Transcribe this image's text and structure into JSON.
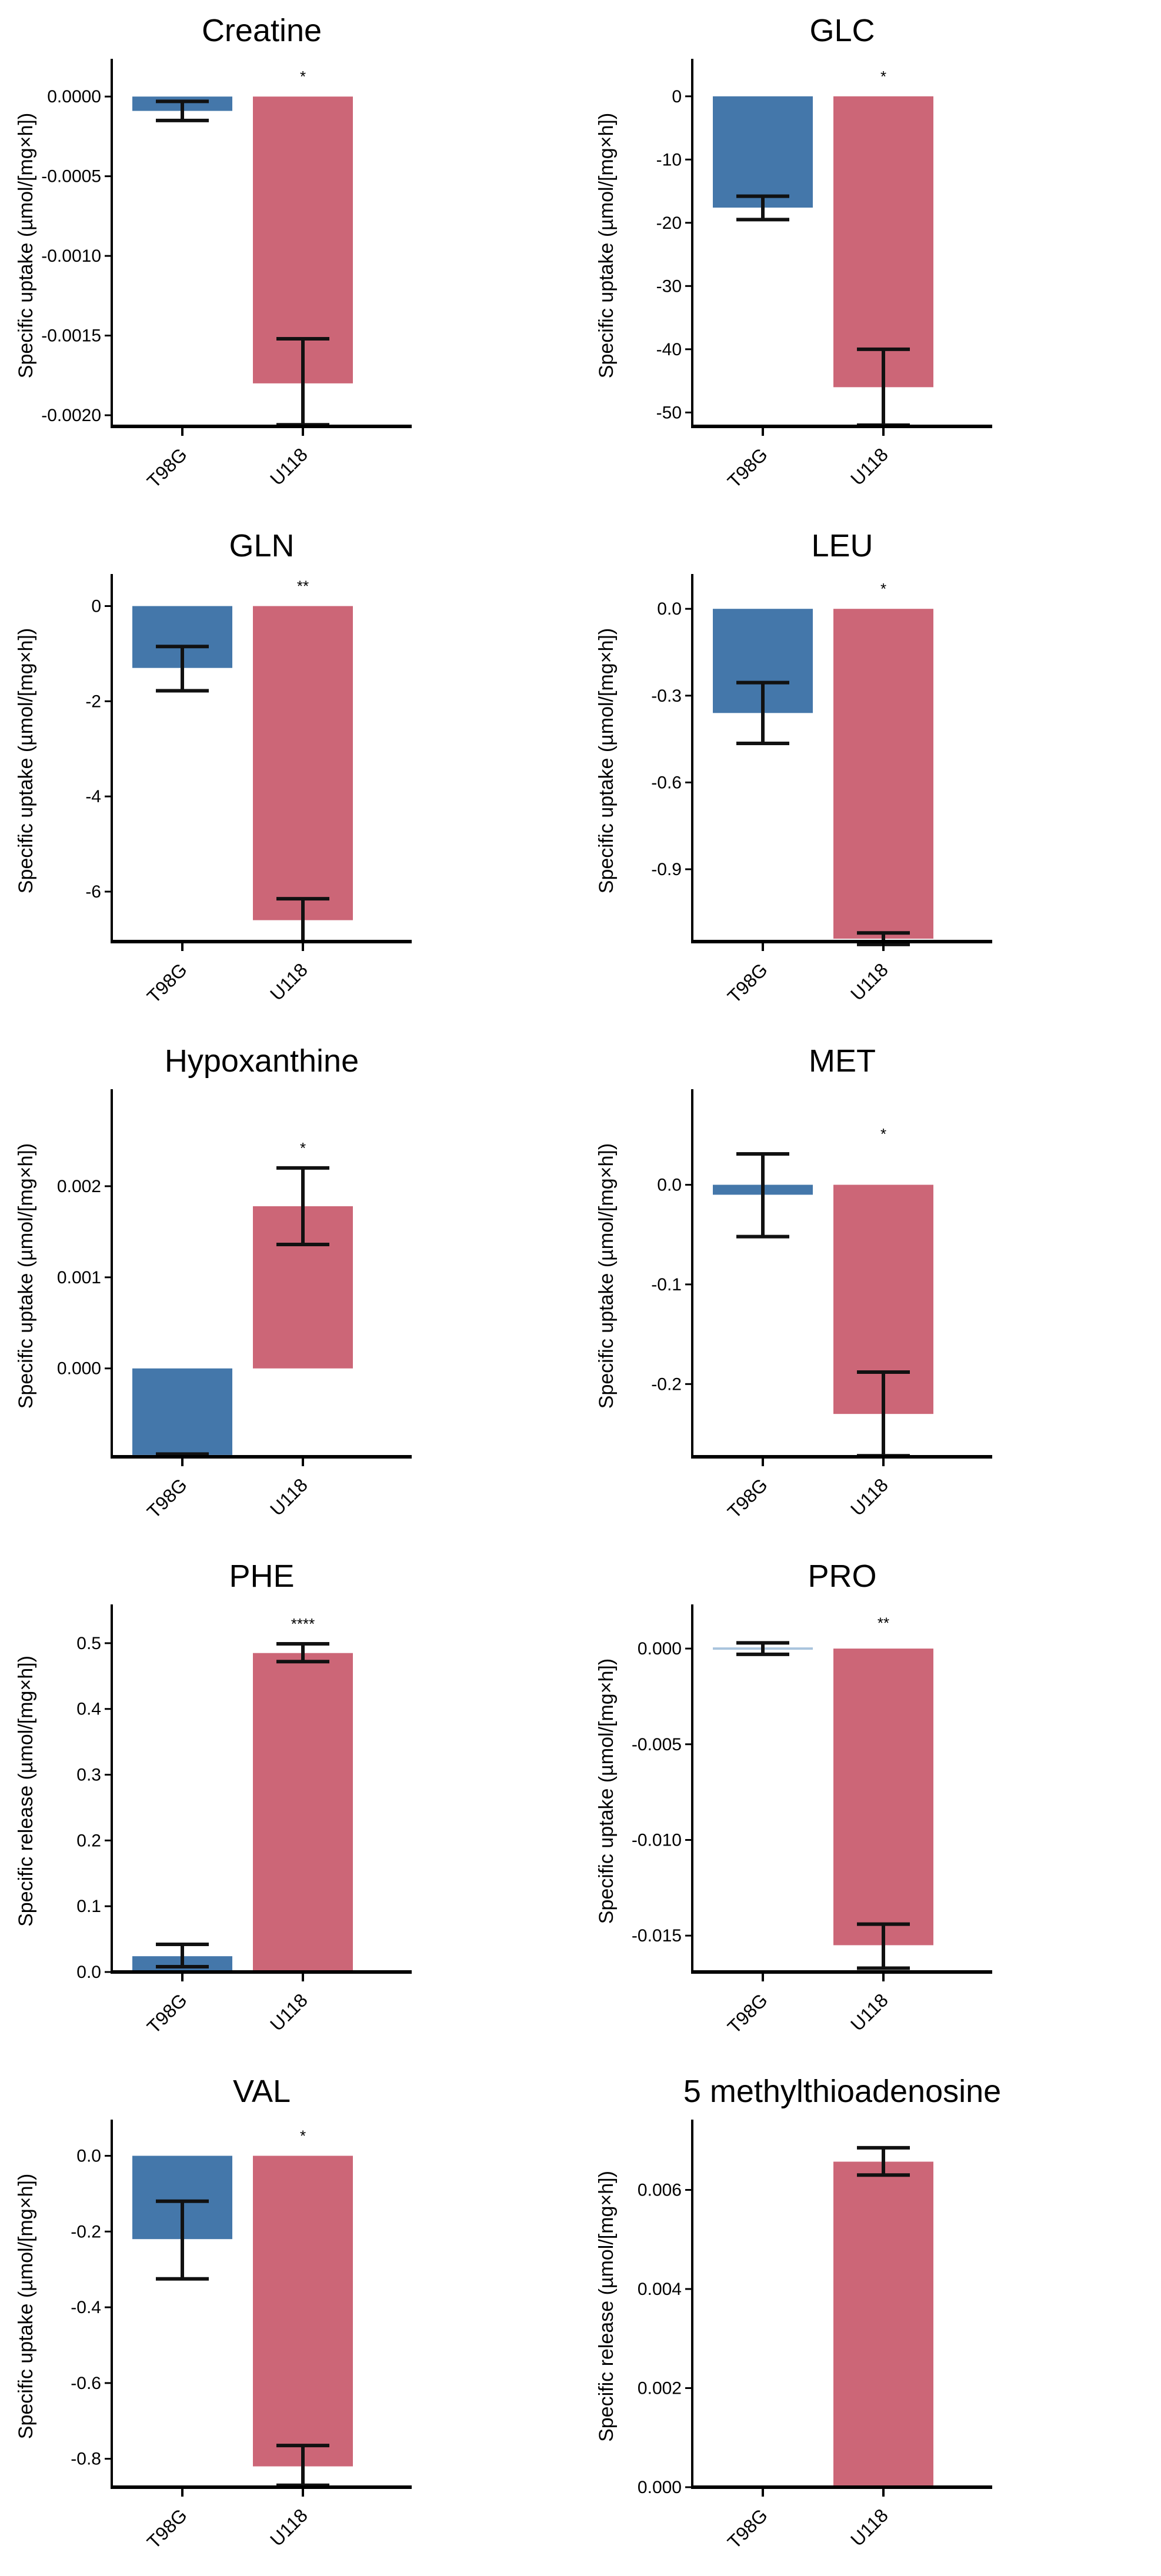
{
  "colors": {
    "T98G": "#4477aa",
    "U118": "#cc6677",
    "T98G_light": "#a9c4dd",
    "error": "#111111"
  },
  "chart_data": [
    {
      "type": "bar",
      "title": "Creatine",
      "ylabel": "Specific uptake (µmol/[mg×h])",
      "categories": [
        "T98G",
        "U118"
      ],
      "values": [
        -9e-05,
        -0.0018
      ],
      "err_low": [
        -0.00015,
        -0.00206
      ],
      "err_high": [
        -3e-05,
        -0.00152
      ],
      "significance": "*",
      "ylim": [
        -0.00207,
        0.0002
      ],
      "yticks": [
        0,
        -0.0005,
        -0.001,
        -0.0015,
        -0.002
      ],
      "ytick_labels": [
        "0.0000",
        "-0.0005",
        "-0.0010",
        "-0.0015",
        "-0.0020"
      ]
    },
    {
      "type": "bar",
      "title": "GLC",
      "ylabel": "Specific uptake (µmol/[mg×h])",
      "categories": [
        "T98G",
        "U118"
      ],
      "values": [
        -17.6,
        -46
      ],
      "err_low": [
        -19.5,
        -52
      ],
      "err_high": [
        -15.8,
        -40
      ],
      "significance": "*",
      "ylim": [
        -52.2,
        5
      ],
      "yticks": [
        0,
        -10,
        -20,
        -30,
        -40,
        -50
      ],
      "ytick_labels": [
        "0",
        "-10",
        "-20",
        "-30",
        "-40",
        "-50"
      ]
    },
    {
      "type": "bar",
      "title": "GLN",
      "ylabel": "Specific uptake (µmol/[mg×h])",
      "categories": [
        "T98G",
        "U118"
      ],
      "values": [
        -1.3,
        -6.6
      ],
      "err_low": [
        -1.78,
        -7.05
      ],
      "err_high": [
        -0.85,
        -6.15
      ],
      "significance": "**",
      "ylim": [
        -7.05,
        0.55
      ],
      "yticks": [
        0,
        -2,
        -4,
        -6
      ],
      "ytick_labels": [
        "0",
        "-2",
        "-4",
        "-6"
      ]
    },
    {
      "type": "bar",
      "title": "LEU",
      "ylabel": "Specific uptake (µmol/[mg×h])",
      "categories": [
        "T98G",
        "U118"
      ],
      "values": [
        -0.36,
        -1.14
      ],
      "err_low": [
        -0.465,
        -1.16
      ],
      "err_high": [
        -0.255,
        -1.12
      ],
      "significance": "*",
      "ylim": [
        -1.15,
        0.1
      ],
      "yticks": [
        0,
        -0.3,
        -0.6,
        -0.9
      ],
      "ytick_labels": [
        "0.0",
        "-0.3",
        "-0.6",
        "-0.9"
      ]
    },
    {
      "type": "bar",
      "title": "Hypoxanthine",
      "ylabel": "Specific uptake (µmol/[mg×h])",
      "categories": [
        "T98G",
        "U118"
      ],
      "values": [
        -0.00095,
        0.00178
      ],
      "err_low": [
        -0.00096,
        0.00136
      ],
      "err_high": [
        -0.00094,
        0.0022
      ],
      "significance": "*",
      "ylim": [
        -0.00097,
        0.003
      ],
      "yticks": [
        0,
        0.001,
        0.002
      ],
      "ytick_labels": [
        "0.000",
        "0.001",
        "0.002"
      ]
    },
    {
      "type": "bar",
      "title": "MET",
      "ylabel": "Specific uptake (µmol/[mg×h])",
      "categories": [
        "T98G",
        "U118"
      ],
      "values": [
        -0.01,
        -0.23
      ],
      "err_low": [
        -0.052,
        -0.272
      ],
      "err_high": [
        0.031,
        -0.188
      ],
      "significance": "*",
      "ylim": [
        -0.273,
        0.09
      ],
      "yticks": [
        0,
        -0.1,
        -0.2
      ],
      "ytick_labels": [
        "0.0",
        "-0.1",
        "-0.2"
      ]
    },
    {
      "type": "bar",
      "title": "PHE",
      "ylabel": "Specific release (µmol/[mg×h])",
      "categories": [
        "T98G",
        "U118"
      ],
      "values": [
        0.024,
        0.485
      ],
      "err_low": [
        0.008,
        0.472
      ],
      "err_high": [
        0.042,
        0.499
      ],
      "significance": "****",
      "ylim": [
        0,
        0.55
      ],
      "yticks": [
        0,
        0.1,
        0.2,
        0.3,
        0.4,
        0.5
      ],
      "ytick_labels": [
        "0.0",
        "0.1",
        "0.2",
        "0.3",
        "0.4",
        "0.5"
      ]
    },
    {
      "type": "bar",
      "title": "PRO",
      "ylabel": "Specific uptake (µmol/[mg×h])",
      "categories": [
        "T98G",
        "U118"
      ],
      "values": [
        0.0,
        -0.0155
      ],
      "err_low": [
        -0.0003,
        -0.0167
      ],
      "err_high": [
        0.0003,
        -0.0144
      ],
      "significance": "**",
      "ylim": [
        -0.0169,
        0.002
      ],
      "yticks": [
        0,
        -0.005,
        -0.01,
        -0.015
      ],
      "ytick_labels": [
        "0.000",
        "-0.005",
        "-0.010",
        "-0.015"
      ]
    },
    {
      "type": "bar",
      "title": "VAL",
      "ylabel": "Specific uptake (µmol/[mg×h])",
      "categories": [
        "T98G",
        "U118"
      ],
      "values": [
        -0.22,
        -0.82
      ],
      "err_low": [
        -0.325,
        -0.87
      ],
      "err_high": [
        -0.12,
        -0.765
      ],
      "significance": "*",
      "ylim": [
        -0.875,
        0.08
      ],
      "yticks": [
        0,
        -0.2,
        -0.4,
        -0.6,
        -0.8
      ],
      "ytick_labels": [
        "0.0",
        "-0.2",
        "-0.4",
        "-0.6",
        "-0.8"
      ]
    },
    {
      "type": "bar",
      "title": "5 methylthioadenosine",
      "ylabel": "Specific release (µmol/[mg×h])",
      "categories": [
        "T98G",
        "U118"
      ],
      "values": [
        0,
        0.00657
      ],
      "err_low": [
        null,
        0.0063
      ],
      "err_high": [
        null,
        0.00685
      ],
      "significance": "",
      "ylim": [
        0,
        0.0073
      ],
      "yticks": [
        0,
        0.002,
        0.004,
        0.006
      ],
      "ytick_labels": [
        "0.000",
        "0.002",
        "0.004",
        "0.006"
      ]
    }
  ]
}
